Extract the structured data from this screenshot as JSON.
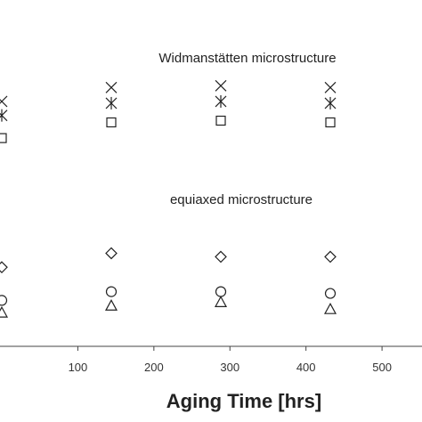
{
  "chart_data": {
    "type": "scatter",
    "xlabel": "Aging Time [hrs]",
    "ylabel": "",
    "xlim": [
      -50,
      600
    ],
    "x_ticks": [
      100,
      200,
      300,
      400,
      500
    ],
    "grid": false,
    "annotations": [
      {
        "text": "Widmanstätten microstructure"
      },
      {
        "text": "equiaxed microstructure"
      }
    ],
    "series": [
      {
        "marker": "x",
        "x": [
          0,
          144,
          288,
          432,
          576
        ],
        "y": [
          8.2,
          8.6,
          8.65,
          8.6,
          8.65
        ]
      },
      {
        "marker": "star",
        "x": [
          0,
          144,
          288,
          432,
          576
        ],
        "y": [
          7.8,
          8.15,
          8.2,
          8.15,
          8.15
        ]
      },
      {
        "marker": "square",
        "x": [
          0,
          144,
          288,
          432,
          576
        ],
        "y": [
          7.15,
          7.6,
          7.65,
          7.6,
          7.5
        ]
      },
      {
        "marker": "diamond",
        "x": [
          0,
          144,
          288,
          432,
          576
        ],
        "y": [
          3.45,
          3.85,
          3.75,
          3.75,
          3.75
        ]
      },
      {
        "marker": "circle",
        "x": [
          0,
          144,
          288,
          432,
          576
        ],
        "y": [
          2.5,
          2.75,
          2.75,
          2.7,
          2.7
        ]
      },
      {
        "marker": "triangle",
        "x": [
          0,
          144,
          288,
          432,
          576
        ],
        "y": [
          2.15,
          2.35,
          2.45,
          2.25,
          2.2
        ]
      }
    ]
  }
}
